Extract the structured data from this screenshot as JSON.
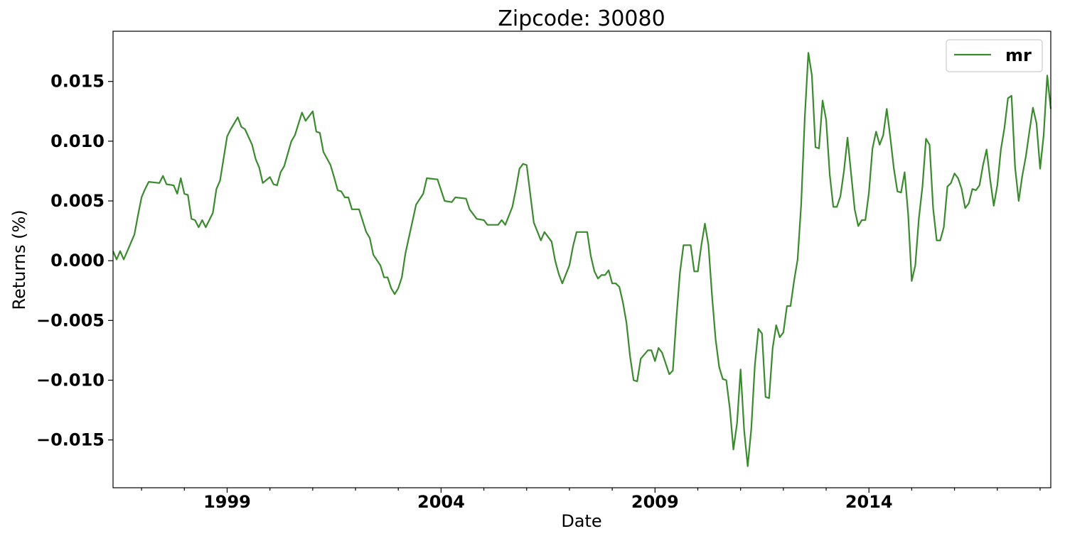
{
  "chart_data": {
    "type": "line",
    "title": "Zipcode: 30080",
    "xlabel": "Date",
    "ylabel": "Returns (%)",
    "x_start": "1996-05",
    "x_end": "2018-04",
    "x_major_ticks": [
      "1999",
      "2004",
      "2009",
      "2014"
    ],
    "ylim": [
      -0.019,
      0.0192
    ],
    "y_ticks": [
      0.015,
      0.01,
      0.005,
      0.0,
      -0.005,
      -0.01,
      -0.015
    ],
    "y_tick_labels": [
      "0.015",
      "0.010",
      "0.005",
      "0.000",
      "−0.005",
      "−0.010",
      "−0.015"
    ],
    "grid": false,
    "legend_position": "top-right",
    "series": [
      {
        "name": "mr",
        "color": "#3a8a2e",
        "points": [
          [
            "1996-05",
            0.0008
          ],
          [
            "1996-06",
            0.0001
          ],
          [
            "1996-07",
            0.0008
          ],
          [
            "1996-08",
            0.0001
          ],
          [
            "1996-09",
            0.0008
          ],
          [
            "1996-10",
            0.0015
          ],
          [
            "1996-11",
            0.0022
          ],
          [
            "1996-12",
            0.0038
          ],
          [
            "1997-01",
            0.0053
          ],
          [
            "1997-02",
            0.006
          ],
          [
            "1997-03",
            0.0066
          ],
          [
            "1997-06",
            0.0065
          ],
          [
            "1997-07",
            0.0071
          ],
          [
            "1997-08",
            0.0064
          ],
          [
            "1997-10",
            0.0063
          ],
          [
            "1997-11",
            0.0056
          ],
          [
            "1997-12",
            0.0069
          ],
          [
            "1998-01",
            0.0056
          ],
          [
            "1998-02",
            0.0055
          ],
          [
            "1998-03",
            0.0035
          ],
          [
            "1998-04",
            0.0034
          ],
          [
            "1998-05",
            0.0028
          ],
          [
            "1998-06",
            0.0034
          ],
          [
            "1998-07",
            0.0028
          ],
          [
            "1998-09",
            0.004
          ],
          [
            "1998-10",
            0.006
          ],
          [
            "1998-11",
            0.0067
          ],
          [
            "1999-01",
            0.0104
          ],
          [
            "1999-02",
            0.011
          ],
          [
            "1999-04",
            0.012
          ],
          [
            "1999-05",
            0.0112
          ],
          [
            "1999-06",
            0.011
          ],
          [
            "1999-08",
            0.0097
          ],
          [
            "1999-09",
            0.0085
          ],
          [
            "1999-10",
            0.0078
          ],
          [
            "1999-11",
            0.0065
          ],
          [
            "2000-01",
            0.007
          ],
          [
            "2000-02",
            0.0064
          ],
          [
            "2000-03",
            0.0063
          ],
          [
            "2000-04",
            0.0074
          ],
          [
            "2000-05",
            0.0079
          ],
          [
            "2000-07",
            0.01
          ],
          [
            "2000-08",
            0.0105
          ],
          [
            "2000-10",
            0.0124
          ],
          [
            "2000-11",
            0.0117
          ],
          [
            "2001-01",
            0.0125
          ],
          [
            "2001-02",
            0.0108
          ],
          [
            "2001-03",
            0.0107
          ],
          [
            "2001-04",
            0.0091
          ],
          [
            "2001-06",
            0.008
          ],
          [
            "2001-07",
            0.007
          ],
          [
            "2001-08",
            0.0059
          ],
          [
            "2001-09",
            0.0058
          ],
          [
            "2001-10",
            0.0053
          ],
          [
            "2001-11",
            0.0053
          ],
          [
            "2001-12",
            0.0043
          ],
          [
            "2002-02",
            0.0043
          ],
          [
            "2002-04",
            0.0024
          ],
          [
            "2002-05",
            0.0019
          ],
          [
            "2002-06",
            0.0005
          ],
          [
            "2002-08",
            -0.0004
          ],
          [
            "2002-09",
            -0.0014
          ],
          [
            "2002-10",
            -0.0014
          ],
          [
            "2002-11",
            -0.0023
          ],
          [
            "2002-12",
            -0.0028
          ],
          [
            "2003-01",
            -0.0023
          ],
          [
            "2003-02",
            -0.0014
          ],
          [
            "2003-03",
            0.0006
          ],
          [
            "2003-06",
            0.0047
          ],
          [
            "2003-08",
            0.0056
          ],
          [
            "2003-09",
            0.0069
          ],
          [
            "2003-12",
            0.0068
          ],
          [
            "2004-02",
            0.005
          ],
          [
            "2004-04",
            0.0049
          ],
          [
            "2004-05",
            0.0053
          ],
          [
            "2004-08",
            0.0052
          ],
          [
            "2004-09",
            0.0043
          ],
          [
            "2004-11",
            0.0035
          ],
          [
            "2005-01",
            0.0034
          ],
          [
            "2005-02",
            0.003
          ],
          [
            "2005-05",
            0.003
          ],
          [
            "2005-06",
            0.0034
          ],
          [
            "2005-07",
            0.003
          ],
          [
            "2005-09",
            0.0045
          ],
          [
            "2005-10",
            0.006
          ],
          [
            "2005-11",
            0.0077
          ],
          [
            "2005-12",
            0.0081
          ],
          [
            "2006-01",
            0.008
          ],
          [
            "2006-02",
            0.0056
          ],
          [
            "2006-03",
            0.0032
          ],
          [
            "2006-05",
            0.0017
          ],
          [
            "2006-06",
            0.0024
          ],
          [
            "2006-08",
            0.0016
          ],
          [
            "2006-09",
            0.0
          ],
          [
            "2006-10",
            -0.0011
          ],
          [
            "2006-11",
            -0.0019
          ],
          [
            "2007-01",
            -0.0004
          ],
          [
            "2007-02",
            0.0012
          ],
          [
            "2007-03",
            0.0024
          ],
          [
            "2007-06",
            0.0024
          ],
          [
            "2007-07",
            0.0004
          ],
          [
            "2007-08",
            -0.0009
          ],
          [
            "2007-09",
            -0.0015
          ],
          [
            "2007-10",
            -0.0012
          ],
          [
            "2007-11",
            -0.0012
          ],
          [
            "2007-12",
            -0.0008
          ],
          [
            "2008-01",
            -0.0019
          ],
          [
            "2008-02",
            -0.0019
          ],
          [
            "2008-03",
            -0.0022
          ],
          [
            "2008-04",
            -0.0035
          ],
          [
            "2008-05",
            -0.0052
          ],
          [
            "2008-06",
            -0.008
          ],
          [
            "2008-07",
            -0.01
          ],
          [
            "2008-08",
            -0.0101
          ],
          [
            "2008-09",
            -0.0082
          ],
          [
            "2008-11",
            -0.0075
          ],
          [
            "2008-12",
            -0.0075
          ],
          [
            "2009-01",
            -0.0084
          ],
          [
            "2009-02",
            -0.0073
          ],
          [
            "2009-03",
            -0.0077
          ],
          [
            "2009-05",
            -0.0095
          ],
          [
            "2009-06",
            -0.0092
          ],
          [
            "2009-07",
            -0.0048
          ],
          [
            "2009-08",
            -0.001
          ],
          [
            "2009-09",
            0.0013
          ],
          [
            "2009-11",
            0.0013
          ],
          [
            "2009-12",
            -0.0009
          ],
          [
            "2010-01",
            -0.0009
          ],
          [
            "2010-02",
            0.0013
          ],
          [
            "2010-03",
            0.0031
          ],
          [
            "2010-04",
            0.0013
          ],
          [
            "2010-05",
            -0.003
          ],
          [
            "2010-06",
            -0.0066
          ],
          [
            "2010-07",
            -0.0089
          ],
          [
            "2010-08",
            -0.0099
          ],
          [
            "2010-09",
            -0.01
          ],
          [
            "2010-10",
            -0.0124
          ],
          [
            "2010-11",
            -0.0158
          ],
          [
            "2010-12",
            -0.0136
          ],
          [
            "2011-01",
            -0.0091
          ],
          [
            "2011-02",
            -0.0142
          ],
          [
            "2011-03",
            -0.0172
          ],
          [
            "2011-04",
            -0.0141
          ],
          [
            "2011-05",
            -0.0088
          ],
          [
            "2011-06",
            -0.0057
          ],
          [
            "2011-07",
            -0.0061
          ],
          [
            "2011-08",
            -0.0114
          ],
          [
            "2011-09",
            -0.0115
          ],
          [
            "2011-10",
            -0.0073
          ],
          [
            "2011-11",
            -0.0054
          ],
          [
            "2011-12",
            -0.0064
          ],
          [
            "2012-01",
            -0.006
          ],
          [
            "2012-02",
            -0.0038
          ],
          [
            "2012-03",
            -0.0038
          ],
          [
            "2012-04",
            -0.0017
          ],
          [
            "2012-05",
            0.0001
          ],
          [
            "2012-06",
            0.0047
          ],
          [
            "2012-07",
            0.012
          ],
          [
            "2012-08",
            0.0174
          ],
          [
            "2012-09",
            0.0155
          ],
          [
            "2012-10",
            0.0095
          ],
          [
            "2012-11",
            0.0094
          ],
          [
            "2012-12",
            0.0134
          ],
          [
            "2013-01",
            0.0118
          ],
          [
            "2013-02",
            0.0072
          ],
          [
            "2013-03",
            0.0045
          ],
          [
            "2013-04",
            0.0045
          ],
          [
            "2013-05",
            0.0054
          ],
          [
            "2013-06",
            0.0075
          ],
          [
            "2013-07",
            0.0103
          ],
          [
            "2013-08",
            0.0073
          ],
          [
            "2013-09",
            0.0043
          ],
          [
            "2013-10",
            0.0029
          ],
          [
            "2013-11",
            0.0034
          ],
          [
            "2013-12",
            0.0034
          ],
          [
            "2014-01",
            0.0057
          ],
          [
            "2014-02",
            0.0094
          ],
          [
            "2014-03",
            0.0108
          ],
          [
            "2014-04",
            0.0097
          ],
          [
            "2014-05",
            0.0105
          ],
          [
            "2014-06",
            0.0127
          ],
          [
            "2014-07",
            0.0103
          ],
          [
            "2014-08",
            0.0077
          ],
          [
            "2014-09",
            0.0058
          ],
          [
            "2014-10",
            0.0057
          ],
          [
            "2014-11",
            0.0074
          ],
          [
            "2014-12",
            0.0039
          ],
          [
            "2015-01",
            -0.0017
          ],
          [
            "2015-02",
            -0.0004
          ],
          [
            "2015-03",
            0.0035
          ],
          [
            "2015-04",
            0.0062
          ],
          [
            "2015-05",
            0.0102
          ],
          [
            "2015-06",
            0.0097
          ],
          [
            "2015-07",
            0.0044
          ],
          [
            "2015-08",
            0.0017
          ],
          [
            "2015-09",
            0.0017
          ],
          [
            "2015-10",
            0.0028
          ],
          [
            "2015-11",
            0.0062
          ],
          [
            "2015-12",
            0.0065
          ],
          [
            "2016-01",
            0.0073
          ],
          [
            "2016-02",
            0.0069
          ],
          [
            "2016-03",
            0.006
          ],
          [
            "2016-04",
            0.0044
          ],
          [
            "2016-05",
            0.0048
          ],
          [
            "2016-06",
            0.006
          ],
          [
            "2016-07",
            0.0059
          ],
          [
            "2016-08",
            0.0063
          ],
          [
            "2016-09",
            0.008
          ],
          [
            "2016-10",
            0.0093
          ],
          [
            "2016-11",
            0.0068
          ],
          [
            "2016-12",
            0.0046
          ],
          [
            "2017-01",
            0.0063
          ],
          [
            "2017-02",
            0.0093
          ],
          [
            "2017-03",
            0.0111
          ],
          [
            "2017-04",
            0.0136
          ],
          [
            "2017-05",
            0.0138
          ],
          [
            "2017-06",
            0.0078
          ],
          [
            "2017-07",
            0.005
          ],
          [
            "2017-08",
            0.0071
          ],
          [
            "2017-09",
            0.0087
          ],
          [
            "2017-10",
            0.0108
          ],
          [
            "2017-11",
            0.0128
          ],
          [
            "2017-12",
            0.0115
          ],
          [
            "2018-01",
            0.0077
          ],
          [
            "2018-02",
            0.0105
          ],
          [
            "2018-03",
            0.0155
          ],
          [
            "2018-04",
            0.0127
          ]
        ]
      }
    ]
  }
}
